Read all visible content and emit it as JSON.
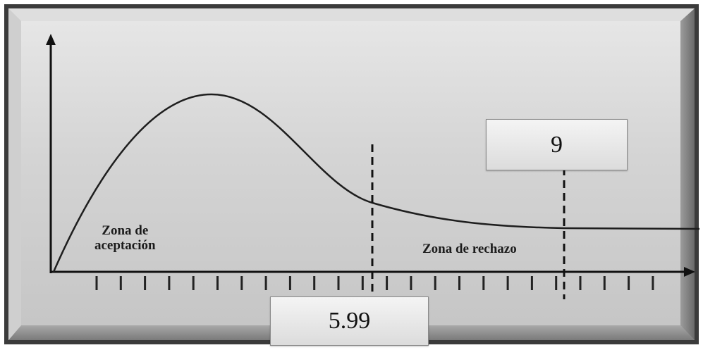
{
  "diagram": {
    "acceptance_zone_line1": "Zona de",
    "acceptance_zone_line2": "aceptación",
    "rejection_zone_label": "Zona de rechazo",
    "critical_value": "5.99",
    "test_statistic": "9"
  },
  "colors": {
    "frame_outer": "#3a3a3a",
    "panel_light": "#d2d2d2",
    "curve": "#1e1e1e"
  }
}
